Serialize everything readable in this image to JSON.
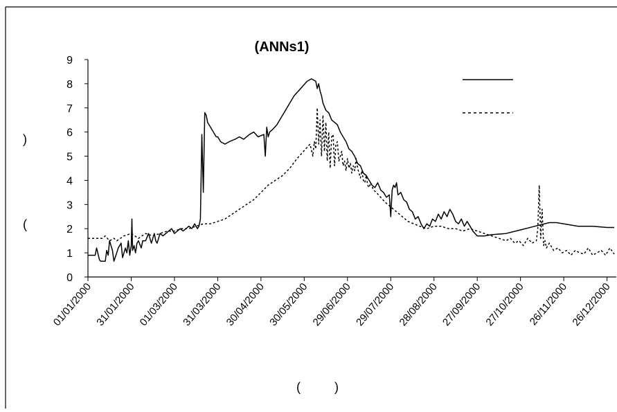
{
  "chart_data": {
    "type": "line",
    "title": "(ANNs1)",
    "xlabel": "(    )",
    "ylabel": "(          )",
    "ylim": [
      0,
      9
    ],
    "yticks": [
      0,
      1,
      2,
      3,
      4,
      5,
      6,
      7,
      8,
      9
    ],
    "xtick_labels": [
      "01/01/2000",
      "31/01/2000",
      "01/03/2000",
      "31/03/2000",
      "30/04/2000",
      "30/05/2000",
      "29/06/2000",
      "29/07/2000",
      "28/08/2000",
      "27/09/2000",
      "27/10/2000",
      "26/11/2000",
      "26/12/2000"
    ],
    "xlim_days": [
      0,
      365
    ],
    "grid": false,
    "legend": "top-right",
    "series": [
      {
        "style": "solid",
        "x": [
          0,
          5,
          6,
          8,
          9,
          12,
          13,
          14,
          15,
          17,
          18,
          20,
          21,
          23,
          24,
          26,
          27,
          28,
          29,
          30,
          30.5,
          31,
          32,
          33,
          34,
          35,
          37,
          38,
          40,
          42,
          43,
          44,
          45,
          46,
          47,
          48,
          50,
          52,
          54,
          56,
          58,
          60,
          62,
          64,
          66,
          68,
          70,
          72,
          74,
          76,
          77,
          78,
          79,
          80,
          81,
          82,
          83,
          84,
          85,
          86,
          87,
          88,
          89,
          90,
          92,
          95,
          98,
          102,
          105,
          108,
          112,
          115,
          118,
          122,
          123,
          124,
          125,
          126,
          128,
          131,
          134,
          137,
          140,
          143,
          146,
          149,
          152,
          155,
          158,
          159,
          160,
          161,
          162,
          163,
          165,
          167,
          169,
          171,
          173,
          175,
          177,
          179,
          181,
          183,
          185,
          187,
          189,
          191,
          193,
          195,
          197,
          199,
          201,
          203,
          205,
          207,
          209,
          210,
          211,
          212,
          213,
          214,
          215,
          217,
          219,
          221,
          223,
          225,
          227,
          229,
          231,
          233,
          235,
          237,
          239,
          241,
          243,
          245,
          247,
          249,
          251,
          253,
          255,
          257,
          259,
          261,
          263,
          265,
          267,
          270,
          275,
          280,
          290,
          300,
          310,
          320,
          325,
          330,
          335,
          340,
          350,
          360,
          365
        ],
        "y": [
          0.9,
          0.9,
          1.2,
          0.7,
          0.65,
          0.65,
          1.1,
          0.9,
          1.5,
          1.1,
          0.65,
          1.0,
          1.2,
          1.4,
          0.8,
          1.2,
          1.0,
          1.5,
          0.9,
          1.3,
          2.4,
          1.1,
          1.3,
          1.0,
          1.4,
          1.5,
          1.2,
          1.5,
          1.5,
          1.8,
          1.6,
          1.4,
          1.6,
          1.8,
          1.5,
          1.4,
          1.8,
          1.7,
          1.8,
          1.9,
          2.0,
          1.8,
          1.9,
          2.0,
          1.9,
          2.0,
          2.1,
          2.0,
          2.2,
          2.0,
          2.1,
          2.4,
          5.9,
          3.5,
          6.8,
          6.7,
          6.4,
          6.3,
          6.2,
          6.1,
          6.0,
          5.9,
          5.8,
          5.8,
          5.6,
          5.5,
          5.6,
          5.7,
          5.8,
          5.7,
          5.9,
          6.0,
          5.8,
          5.9,
          5.0,
          6.2,
          5.8,
          6.0,
          6.1,
          6.3,
          6.6,
          6.9,
          7.2,
          7.5,
          7.7,
          7.9,
          8.1,
          8.2,
          8.1,
          7.8,
          8.0,
          7.7,
          7.5,
          7.2,
          6.9,
          6.8,
          6.5,
          6.4,
          6.3,
          6.0,
          5.8,
          5.6,
          5.3,
          5.2,
          5.0,
          4.7,
          4.6,
          4.3,
          4.2,
          4.0,
          3.8,
          3.7,
          3.9,
          3.6,
          3.5,
          3.3,
          3.4,
          2.5,
          3.6,
          3.8,
          3.7,
          3.9,
          3.4,
          3.5,
          3.2,
          3.1,
          2.8,
          2.7,
          2.4,
          2.5,
          2.2,
          2.0,
          2.2,
          2.1,
          2.4,
          2.3,
          2.6,
          2.4,
          2.7,
          2.5,
          2.8,
          2.6,
          2.3,
          2.2,
          2.4,
          2.1,
          2.3,
          2.1,
          1.9,
          1.7,
          1.7,
          1.75,
          1.8,
          1.95,
          2.1,
          2.25,
          2.25,
          2.2,
          2.15,
          2.1,
          2.1,
          2.05,
          2.05
        ]
      },
      {
        "style": "dotted",
        "x": [
          0,
          5,
          10,
          12,
          15,
          18,
          20,
          25,
          30,
          35,
          40,
          45,
          50,
          55,
          60,
          65,
          70,
          75,
          80,
          85,
          90,
          95,
          100,
          105,
          110,
          115,
          120,
          125,
          130,
          135,
          140,
          145,
          148,
          151,
          154,
          156,
          157,
          158,
          159,
          160,
          161,
          162,
          163,
          164,
          165,
          166,
          167,
          168,
          169,
          170,
          171,
          172,
          173,
          174,
          175,
          176,
          177,
          178,
          179,
          180,
          181,
          182,
          183,
          184,
          185,
          186,
          187,
          188,
          189,
          190,
          191,
          192,
          193,
          194,
          195,
          196,
          198,
          200,
          203,
          206,
          210,
          214,
          218,
          222,
          226,
          230,
          235,
          240,
          245,
          250,
          255,
          260,
          265,
          270,
          275,
          280,
          285,
          290,
          293,
          296,
          299,
          302,
          305,
          308,
          311,
          312,
          313,
          314,
          315,
          316,
          317,
          318,
          320,
          323,
          326,
          329,
          332,
          335,
          338,
          341,
          344,
          347,
          350,
          353,
          356,
          359,
          362,
          365
        ],
        "y": [
          1.6,
          1.6,
          1.6,
          1.7,
          1.5,
          1.6,
          1.5,
          1.7,
          1.8,
          1.6,
          1.8,
          1.7,
          1.8,
          1.9,
          1.9,
          2.0,
          2.0,
          2.1,
          2.2,
          2.2,
          2.3,
          2.4,
          2.6,
          2.8,
          3.0,
          3.2,
          3.5,
          3.8,
          4.0,
          4.2,
          4.5,
          4.9,
          5.1,
          5.3,
          5.5,
          5.0,
          5.6,
          5.3,
          7.0,
          5.5,
          6.5,
          5.0,
          6.7,
          5.2,
          6.4,
          4.8,
          6.0,
          4.5,
          5.8,
          5.9,
          4.6,
          5.5,
          5.6,
          4.8,
          5.0,
          5.2,
          4.6,
          4.8,
          4.4,
          4.9,
          4.5,
          4.7,
          4.3,
          4.6,
          4.4,
          4.9,
          4.5,
          4.3,
          4.1,
          4.4,
          4.0,
          3.9,
          4.2,
          3.8,
          3.7,
          3.9,
          3.6,
          3.5,
          3.3,
          3.1,
          2.9,
          2.7,
          2.5,
          2.3,
          2.2,
          2.1,
          2.0,
          2.1,
          2.1,
          2.0,
          2.0,
          1.9,
          2.0,
          1.9,
          1.8,
          1.7,
          1.6,
          1.5,
          1.6,
          1.4,
          1.5,
          1.3,
          1.6,
          1.4,
          1.5,
          2.0,
          3.8,
          1.6,
          2.8,
          1.3,
          1.5,
          1.2,
          1.4,
          1.1,
          1.2,
          1.0,
          1.1,
          0.9,
          1.1,
          1.0,
          0.95,
          1.2,
          0.9,
          1.0,
          1.1,
          0.9,
          1.2,
          0.95
        ]
      }
    ]
  }
}
